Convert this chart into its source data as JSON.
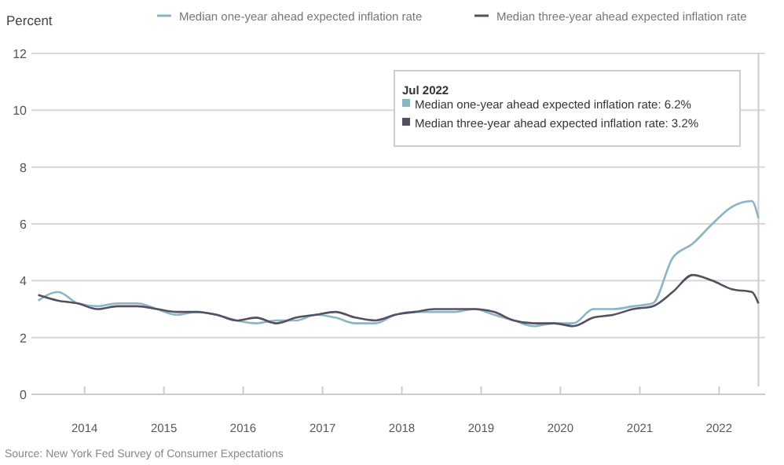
{
  "chart_data": {
    "type": "line",
    "ylabel": "Percent",
    "x": [
      "2013-06",
      "2013-09",
      "2013-12",
      "2014-03",
      "2014-06",
      "2014-09",
      "2014-12",
      "2015-03",
      "2015-06",
      "2015-09",
      "2015-12",
      "2016-03",
      "2016-06",
      "2016-09",
      "2016-12",
      "2017-03",
      "2017-06",
      "2017-09",
      "2017-12",
      "2018-03",
      "2018-06",
      "2018-09",
      "2018-12",
      "2019-03",
      "2019-06",
      "2019-09",
      "2019-12",
      "2020-03",
      "2020-06",
      "2020-09",
      "2020-12",
      "2021-03",
      "2021-06",
      "2021-09",
      "2021-12",
      "2022-03",
      "2022-06",
      "2022-07"
    ],
    "series": [
      {
        "name": "Median one-year ahead expected inflation rate",
        "color": "#8ab4c8",
        "values": [
          3.3,
          3.6,
          3.2,
          3.1,
          3.2,
          3.2,
          3.0,
          2.8,
          2.9,
          2.8,
          2.6,
          2.5,
          2.6,
          2.6,
          2.8,
          2.7,
          2.5,
          2.5,
          2.8,
          2.9,
          2.9,
          2.9,
          3.0,
          2.8,
          2.6,
          2.4,
          2.5,
          2.5,
          3.0,
          3.0,
          3.1,
          3.2,
          4.8,
          5.3,
          6.0,
          6.6,
          6.8,
          6.2
        ]
      },
      {
        "name": "Median three-year ahead expected inflation rate",
        "color": "#55505f",
        "values": [
          3.5,
          3.3,
          3.2,
          3.0,
          3.1,
          3.1,
          3.0,
          2.9,
          2.9,
          2.8,
          2.6,
          2.7,
          2.5,
          2.7,
          2.8,
          2.9,
          2.7,
          2.6,
          2.8,
          2.9,
          3.0,
          3.0,
          3.0,
          2.9,
          2.6,
          2.5,
          2.5,
          2.4,
          2.7,
          2.8,
          3.0,
          3.1,
          3.6,
          4.2,
          4.0,
          3.7,
          3.6,
          3.2
        ]
      }
    ],
    "xlim": [
      "2013-05",
      "2022-08"
    ],
    "xticks": [
      {
        "value": "2014-01",
        "label": "2014"
      },
      {
        "value": "2015-01",
        "label": "2015"
      },
      {
        "value": "2016-01",
        "label": "2016"
      },
      {
        "value": "2017-01",
        "label": "2017"
      },
      {
        "value": "2018-01",
        "label": "2018"
      },
      {
        "value": "2019-01",
        "label": "2019"
      },
      {
        "value": "2020-01",
        "label": "2020"
      },
      {
        "value": "2021-01",
        "label": "2021"
      },
      {
        "value": "2022-01",
        "label": "2022"
      }
    ],
    "ylim": [
      0,
      12
    ],
    "yticks": [
      0,
      2,
      4,
      6,
      8,
      10,
      12
    ],
    "grid": "y",
    "legend": "top",
    "marker": "none",
    "line_style": "solid",
    "ref_lines": [
      {
        "axis": "x",
        "value": "2022-07",
        "color": "#cccccc"
      }
    ],
    "annotations": [
      "Jul 2022",
      "Median one-year ahead expected inflation rate: 6.2%",
      "Median three-year ahead expected inflation rate: 3.2%",
      "Source: New York Fed Survey of Consumer Expectations"
    ]
  }
}
